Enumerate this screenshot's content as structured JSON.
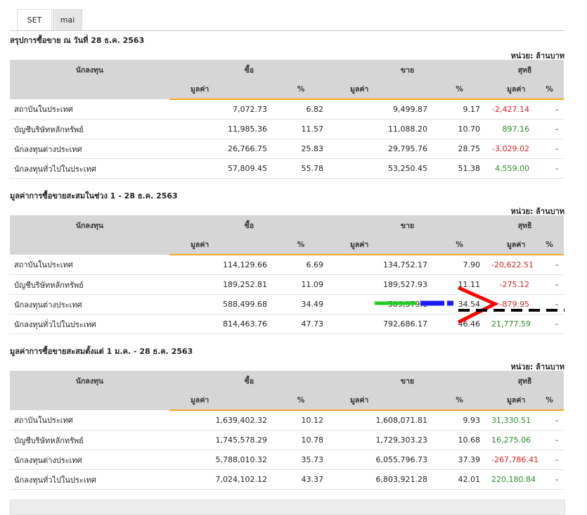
{
  "tabs": [
    "SET",
    "mai"
  ],
  "unit": "หน่วย: ล้านบาท",
  "headers": {
    "investor": "นักลงทุน",
    "buy": "ซื้อ",
    "sell": "ขาย",
    "net": "สุทธิ",
    "value": "มูลค่า",
    "pct": "%"
  },
  "sections": [
    {
      "title": "สรุปการซื้อขาย ณ วันที่ 28 ธ.ค. 2563",
      "rows": [
        {
          "name": "สถาบันในประเทศ",
          "buy_val": "7,072.73",
          "buy_pct": "6.82",
          "sell_val": "9,499.87",
          "sell_pct": "9.17",
          "net_val": "-2,427.14",
          "net_pct": "-"
        },
        {
          "name": "บัญชีบริษัทหลักทรัพย์",
          "buy_val": "11,985.36",
          "buy_pct": "11.57",
          "sell_val": "11,088.20",
          "sell_pct": "10.70",
          "net_val": "897.16",
          "net_pct": "-"
        },
        {
          "name": "นักลงทุนต่างประเทศ",
          "buy_val": "26,766.75",
          "buy_pct": "25.83",
          "sell_val": "29,795.76",
          "sell_pct": "28.75",
          "net_val": "-3,029.02",
          "net_pct": "-"
        },
        {
          "name": "นักลงทุนทั่วไปในประเทศ",
          "buy_val": "57,809.45",
          "buy_pct": "55.78",
          "sell_val": "53,250.45",
          "sell_pct": "51.38",
          "net_val": "4,559.00",
          "net_pct": "-"
        }
      ]
    },
    {
      "title": "มูลค่าการซื้อขายสะสมในช่วง 1 - 28 ธ.ค. 2563",
      "rows": [
        {
          "name": "สถาบันในประเทศ",
          "buy_val": "114,129.66",
          "buy_pct": "6.69",
          "sell_val": "134,752.17",
          "sell_pct": "7.90",
          "net_val": "-20,622.51",
          "net_pct": "-"
        },
        {
          "name": "บัญชีบริษัทหลักทรัพย์",
          "buy_val": "189,252.81",
          "buy_pct": "11.09",
          "sell_val": "189,527.93",
          "sell_pct": "11.11",
          "net_val": "-275.12",
          "net_pct": "-"
        },
        {
          "name": "นักลงทุนต่างประเทศ",
          "buy_val": "588,499.68",
          "buy_pct": "34.49",
          "sell_val": "589,379.6",
          "sell_pct": "34.54",
          "net_val": "-879.95",
          "net_pct": "-"
        },
        {
          "name": "นักลงทุนทั่วไปในประเทศ",
          "buy_val": "814,463.76",
          "buy_pct": "47.73",
          "sell_val": "792,686.17",
          "sell_pct": "46.46",
          "net_val": "21,777.59",
          "net_pct": "-"
        }
      ]
    },
    {
      "title": "มูลค่าการซื้อขายสะสมตั้งแต่ 1 ม.ค. - 28 ธ.ค. 2563",
      "rows": [
        {
          "name": "สถาบันในประเทศ",
          "buy_val": "1,639,402.32",
          "buy_pct": "10.12",
          "sell_val": "1,608,071.81",
          "sell_pct": "9.93",
          "net_val": "31,330.51",
          "net_pct": "-"
        },
        {
          "name": "บัญชีบริษัทหลักทรัพย์",
          "buy_val": "1,745,578.29",
          "buy_pct": "10.78",
          "sell_val": "1,729,303.23",
          "sell_pct": "10.68",
          "net_val": "16,275.06",
          "net_pct": "-"
        },
        {
          "name": "นักลงทุนต่างประเทศ",
          "buy_val": "5,788,010.32",
          "buy_pct": "35.73",
          "sell_val": "6,055,796.73",
          "sell_pct": "37.39",
          "net_val": "-267,786.41",
          "net_pct": "-"
        },
        {
          "name": "นักลงทุนทั่วไปในประเทศ",
          "buy_val": "7,024,102.12",
          "buy_pct": "43.37",
          "sell_val": "6,803,921.28",
          "sell_pct": "42.01",
          "net_val": "220,180.84",
          "net_pct": "-"
        }
      ]
    }
  ],
  "colors": {
    "negative": "#e02020",
    "positive": "#2a8a2a",
    "accent": "#f5a623",
    "annotation_red": "#ff0000",
    "annotation_green": "#22cc22",
    "annotation_blue": "#1a1aff"
  }
}
